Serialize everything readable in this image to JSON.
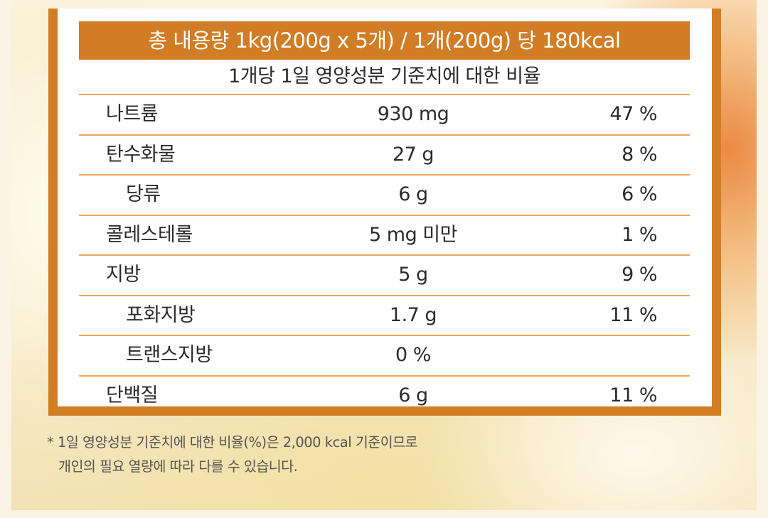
{
  "header": {
    "title": "총 내용량 1kg(200g x 5개)  /  1개(200g) 당 180kcal"
  },
  "subheader": {
    "title": "1개당 1일 영양성분 기준치에 대한 비율"
  },
  "nutrients": [
    {
      "name": "나트륨",
      "amount": "930 mg",
      "percent": "47 %"
    },
    {
      "name": "탄수화물",
      "amount": "27 g",
      "percent": "8 %"
    },
    {
      "name": "당류",
      "amount": "6 g",
      "percent": "6 %",
      "sub": true
    },
    {
      "name": "콜레스테롤",
      "amount": "5 mg 미만",
      "percent": "1 %"
    },
    {
      "name": "지방",
      "amount": "5 g",
      "percent": "9 %"
    },
    {
      "name": "포화지방",
      "amount": "1.7 g",
      "percent": "11 %",
      "sub": true
    },
    {
      "name": "트랜스지방",
      "amount": "0 %",
      "percent": "",
      "sub": true
    },
    {
      "name": "단백질",
      "amount": "6 g",
      "percent": "11 %"
    }
  ],
  "footnote": {
    "line1": "* 1일 영양성분 기준치에 대한 비율(%)은 2,000 kcal 기준이므로",
    "line2": "개인의 필요 열량에 따라 다를 수 있습니다."
  },
  "colors": {
    "accent": "#d17d25",
    "divider": "#e8a75c",
    "text": "#2b2b2b"
  }
}
